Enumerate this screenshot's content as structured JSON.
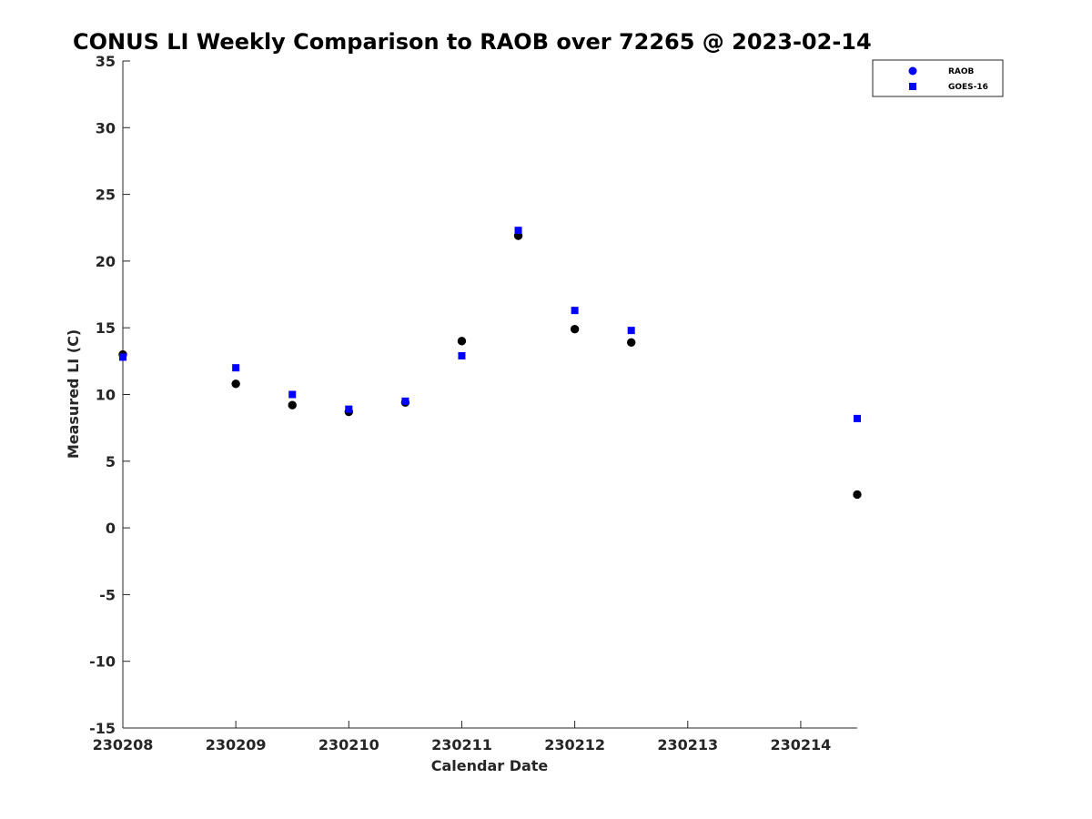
{
  "chart_data": {
    "type": "scatter",
    "title": "CONUS LI Weekly Comparison to RAOB over 72265 @ 2023-02-14",
    "xlabel": "Calendar Date",
    "ylabel": "Measured LI (C)",
    "x_tick_labels": [
      "230208",
      "230209",
      "230210",
      "230211",
      "230212",
      "230213",
      "230214"
    ],
    "x_tick_days": [
      8,
      9,
      10,
      11,
      12,
      13,
      14
    ],
    "xlim": [
      8,
      14.5
    ],
    "ylim": [
      -15,
      35
    ],
    "y_ticks": [
      -15,
      -10,
      -5,
      0,
      5,
      10,
      15,
      20,
      25,
      30,
      35
    ],
    "grid": false,
    "legend_position": "top-right",
    "series": [
      {
        "name": "RAOB",
        "marker": "circle",
        "color": "#000000",
        "legend_color": "#0000ff",
        "points": [
          {
            "x": 8.0,
            "y": 13.0
          },
          {
            "x": 9.0,
            "y": 10.8
          },
          {
            "x": 9.5,
            "y": 9.2
          },
          {
            "x": 10.0,
            "y": 8.7
          },
          {
            "x": 10.5,
            "y": 9.4
          },
          {
            "x": 11.0,
            "y": 14.0
          },
          {
            "x": 11.5,
            "y": 21.9
          },
          {
            "x": 12.0,
            "y": 14.9
          },
          {
            "x": 12.5,
            "y": 13.9
          },
          {
            "x": 14.5,
            "y": 2.5
          }
        ]
      },
      {
        "name": "GOES-16",
        "marker": "square",
        "color": "#0000ff",
        "legend_color": "#0000ff",
        "points": [
          {
            "x": 8.0,
            "y": 12.8
          },
          {
            "x": 9.0,
            "y": 12.0
          },
          {
            "x": 9.5,
            "y": 10.0
          },
          {
            "x": 10.0,
            "y": 8.9
          },
          {
            "x": 10.5,
            "y": 9.5
          },
          {
            "x": 11.0,
            "y": 12.9
          },
          {
            "x": 11.5,
            "y": 22.3
          },
          {
            "x": 12.0,
            "y": 16.3
          },
          {
            "x": 12.5,
            "y": 14.8
          },
          {
            "x": 14.5,
            "y": 8.2
          }
        ]
      }
    ]
  }
}
